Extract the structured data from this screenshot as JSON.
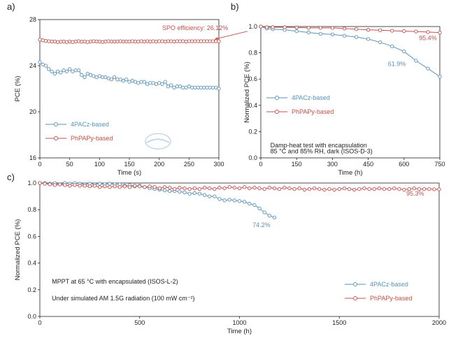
{
  "colors": {
    "blue": "#5a93b8",
    "red": "#c0504d",
    "axis": "#222222"
  },
  "panels": {
    "a": "a)",
    "b": "b)",
    "c": "c)"
  },
  "chart_data": [
    {
      "id": "a",
      "type": "line",
      "xlabel": "Time (s)",
      "ylabel": "PCE (%)",
      "xlim": [
        0,
        300
      ],
      "ylim": [
        16,
        28
      ],
      "xticks": [
        0,
        50,
        100,
        150,
        200,
        250,
        300
      ],
      "yticks": [
        16,
        20,
        24,
        28
      ],
      "legend": "bottom-left",
      "annotations": [
        {
          "text": "SPO efficiency: 26.12%",
          "x": 205,
          "y": 27.1,
          "arrow_to": [
            293,
            26.3
          ]
        }
      ],
      "series": [
        {
          "name": "4PACz-based",
          "color": "#5a93b8",
          "marker": "circle",
          "x": [
            0,
            5,
            10,
            15,
            20,
            25,
            30,
            35,
            40,
            45,
            50,
            55,
            60,
            65,
            70,
            75,
            80,
            85,
            90,
            95,
            100,
            105,
            110,
            115,
            120,
            125,
            130,
            135,
            140,
            145,
            150,
            155,
            160,
            165,
            170,
            175,
            180,
            185,
            190,
            195,
            200,
            205,
            210,
            215,
            220,
            225,
            230,
            235,
            240,
            245,
            250,
            255,
            260,
            265,
            270,
            275,
            280,
            285,
            290,
            295,
            300
          ],
          "y": [
            24.3,
            24.1,
            24.0,
            23.7,
            23.5,
            23.3,
            23.5,
            23.4,
            23.6,
            23.5,
            23.7,
            23.5,
            23.6,
            23.6,
            23.2,
            23.0,
            23.3,
            23.2,
            23.1,
            23.0,
            23.1,
            23.0,
            23.0,
            22.9,
            22.8,
            23.0,
            22.8,
            22.8,
            22.7,
            22.8,
            22.6,
            22.7,
            22.6,
            22.5,
            22.6,
            22.6,
            22.4,
            22.5,
            22.5,
            22.4,
            22.5,
            22.4,
            22.6,
            22.2,
            22.3,
            22.1,
            22.2,
            22.2,
            22.1,
            22.1,
            22.2,
            22.1,
            22.1,
            22.1,
            22.1,
            22.1,
            22.1,
            22.1,
            22.1,
            22.1,
            22.0
          ]
        },
        {
          "name": "PhPAPy-based",
          "color": "#c0504d",
          "marker": "circle",
          "x": [
            0,
            5,
            10,
            15,
            20,
            25,
            30,
            35,
            40,
            45,
            50,
            55,
            60,
            65,
            70,
            75,
            80,
            85,
            90,
            95,
            100,
            105,
            110,
            115,
            120,
            125,
            130,
            135,
            140,
            145,
            150,
            155,
            160,
            165,
            170,
            175,
            180,
            185,
            190,
            195,
            200,
            205,
            210,
            215,
            220,
            225,
            230,
            235,
            240,
            245,
            250,
            255,
            260,
            265,
            270,
            275,
            280,
            285,
            290,
            295,
            300
          ],
          "y": [
            26.25,
            26.2,
            26.15,
            26.12,
            26.1,
            26.1,
            26.05,
            26.08,
            26.1,
            26.05,
            26.1,
            26.05,
            26.1,
            26.12,
            26.08,
            26.1,
            26.05,
            26.1,
            26.12,
            26.1,
            26.1,
            26.05,
            26.1,
            26.12,
            26.1,
            26.1,
            26.1,
            26.12,
            26.1,
            26.1,
            26.1,
            26.12,
            26.1,
            26.1,
            26.12,
            26.1,
            26.12,
            26.1,
            26.12,
            26.1,
            26.12,
            26.12,
            26.1,
            26.12,
            26.12,
            26.1,
            26.12,
            26.12,
            26.12,
            26.1,
            26.12,
            26.12,
            26.12,
            26.12,
            26.12,
            26.12,
            26.12,
            26.12,
            26.12,
            26.12,
            26.12
          ]
        }
      ],
      "watermark": "sunergy"
    },
    {
      "id": "b",
      "type": "line",
      "xlabel": "Time (h)",
      "ylabel": "Normalized PCE (%)",
      "xlim": [
        0,
        750
      ],
      "ylim": [
        0,
        1.0
      ],
      "xticks": [
        0,
        150,
        300,
        450,
        600,
        750
      ],
      "yticks": [
        0.0,
        0.2,
        0.4,
        0.6,
        0.8,
        1.0
      ],
      "legend": "left",
      "annotations": [
        {
          "text": "95.4%",
          "x": 700,
          "y": 0.895,
          "color": "#c0504d"
        },
        {
          "text": "61.9%",
          "x": 570,
          "y": 0.7,
          "color": "#5a93b8"
        },
        {
          "text": "Damp-heat test with encapsulation",
          "x": 40,
          "y": 0.08
        },
        {
          "text": "85 °C and 85% RH, dark (ISOS-D-3)",
          "x": 40,
          "y": 0.035
        }
      ],
      "series": [
        {
          "name": "4PACz-based",
          "color": "#5a93b8",
          "marker": "circle",
          "x": [
            0,
            25,
            50,
            100,
            150,
            200,
            250,
            300,
            350,
            400,
            450,
            500,
            550,
            600,
            650,
            700,
            750
          ],
          "y": [
            1.0,
            0.985,
            0.98,
            0.975,
            0.965,
            0.955,
            0.945,
            0.94,
            0.93,
            0.92,
            0.905,
            0.88,
            0.85,
            0.81,
            0.74,
            0.68,
            0.619
          ]
        },
        {
          "name": "PhPAPy-based",
          "color": "#c0504d",
          "marker": "circle",
          "x": [
            0,
            25,
            50,
            100,
            150,
            200,
            250,
            300,
            350,
            400,
            450,
            500,
            550,
            600,
            650,
            700,
            750
          ],
          "y": [
            1.0,
            0.995,
            0.995,
            0.995,
            0.993,
            0.99,
            0.99,
            0.99,
            0.985,
            0.98,
            0.975,
            0.972,
            0.968,
            0.965,
            0.962,
            0.958,
            0.954
          ]
        }
      ]
    },
    {
      "id": "c",
      "type": "line",
      "xlabel": "Time (h)",
      "ylabel": "Normalized PCE (%)",
      "xlim": [
        0,
        2000
      ],
      "ylim": [
        0,
        1.0
      ],
      "xticks": [
        0,
        500,
        1000,
        1500,
        2000
      ],
      "yticks": [
        0.0,
        0.2,
        0.4,
        0.6,
        0.8,
        1.0
      ],
      "legend": "bottom-right",
      "annotations": [
        {
          "text": "95.3%",
          "x": 1880,
          "y": 0.905,
          "color": "#c0504d"
        },
        {
          "text": "74.2%",
          "x": 1110,
          "y": 0.67,
          "color": "#5a93b8"
        },
        {
          "text": "MPPT at 65 °C with encapsulated (ISOS-L-2)",
          "x": 60,
          "y": 0.245
        },
        {
          "text": "Under simulated AM 1.5G radiation (100 mW cm⁻²)",
          "x": 60,
          "y": 0.12
        }
      ],
      "series": [
        {
          "name": "4PACz-based",
          "color": "#5a93b8",
          "marker": "circle",
          "x": [
            0,
            25,
            50,
            75,
            100,
            125,
            150,
            175,
            200,
            225,
            250,
            275,
            300,
            325,
            350,
            375,
            400,
            425,
            450,
            475,
            500,
            525,
            550,
            575,
            600,
            625,
            650,
            675,
            700,
            725,
            750,
            775,
            800,
            825,
            850,
            875,
            900,
            925,
            950,
            975,
            1000,
            1025,
            1050,
            1075,
            1100,
            1125,
            1150,
            1175
          ],
          "y": [
            1.0,
            1.0,
            0.995,
            1.0,
            0.99,
            1.0,
            0.995,
            1.0,
            0.995,
            0.99,
            0.995,
            0.99,
            0.995,
            0.99,
            0.995,
            0.99,
            0.99,
            0.98,
            0.985,
            0.975,
            0.98,
            0.97,
            0.96,
            0.955,
            0.95,
            0.945,
            0.94,
            0.94,
            0.935,
            0.93,
            0.92,
            0.925,
            0.92,
            0.91,
            0.9,
            0.9,
            0.88,
            0.87,
            0.875,
            0.87,
            0.865,
            0.86,
            0.845,
            0.835,
            0.81,
            0.78,
            0.755,
            0.742
          ]
        },
        {
          "name": "PhPAPy-based",
          "color": "#c0504d",
          "marker": "circle",
          "x": [
            0,
            25,
            50,
            75,
            100,
            125,
            150,
            175,
            200,
            225,
            250,
            275,
            300,
            325,
            350,
            375,
            400,
            425,
            450,
            475,
            500,
            525,
            550,
            575,
            600,
            625,
            650,
            675,
            700,
            725,
            750,
            775,
            800,
            825,
            850,
            875,
            900,
            925,
            950,
            975,
            1000,
            1025,
            1050,
            1075,
            1100,
            1125,
            1150,
            1175,
            1200,
            1225,
            1250,
            1275,
            1300,
            1325,
            1350,
            1375,
            1400,
            1425,
            1450,
            1475,
            1500,
            1525,
            1550,
            1575,
            1600,
            1625,
            1650,
            1675,
            1700,
            1725,
            1750,
            1775,
            1800,
            1825,
            1850,
            1875,
            1900,
            1925,
            1950,
            1975,
            2000
          ],
          "y": [
            1.0,
            0.995,
            0.99,
            0.985,
            0.99,
            0.985,
            0.98,
            0.985,
            0.98,
            0.98,
            0.975,
            0.98,
            0.97,
            0.975,
            0.97,
            0.975,
            0.97,
            0.975,
            0.97,
            0.98,
            0.975,
            0.97,
            0.975,
            0.97,
            0.96,
            0.97,
            0.965,
            0.955,
            0.965,
            0.96,
            0.955,
            0.96,
            0.955,
            0.965,
            0.96,
            0.955,
            0.965,
            0.96,
            0.97,
            0.965,
            0.96,
            0.97,
            0.96,
            0.965,
            0.96,
            0.955,
            0.965,
            0.96,
            0.955,
            0.965,
            0.96,
            0.955,
            0.96,
            0.95,
            0.955,
            0.96,
            0.955,
            0.95,
            0.955,
            0.95,
            0.955,
            0.96,
            0.955,
            0.95,
            0.955,
            0.96,
            0.955,
            0.955,
            0.96,
            0.955,
            0.955,
            0.96,
            0.955,
            0.95,
            0.955,
            0.96,
            0.955,
            0.955,
            0.955,
            0.953,
            0.953
          ]
        }
      ]
    }
  ]
}
